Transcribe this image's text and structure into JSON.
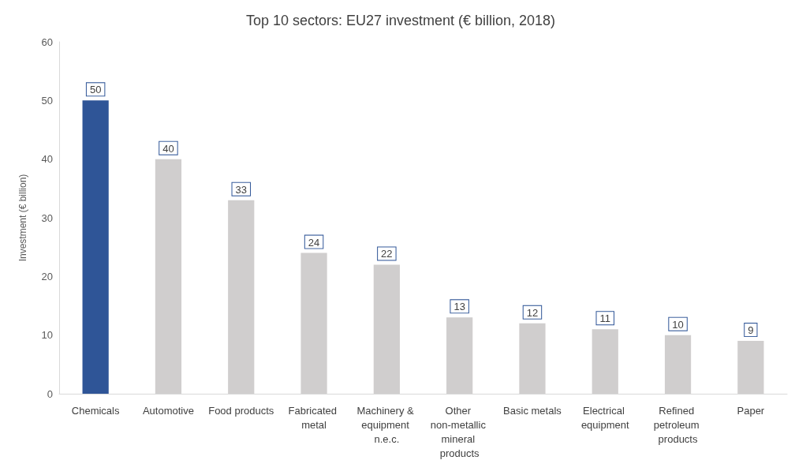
{
  "chart_data": {
    "type": "bar",
    "title": "Top 10 sectors: EU27 investment (€ billion, 2018)",
    "ylabel": "Investment (€ billion)",
    "categories": [
      "Chemicals",
      "Automotive",
      "Food products",
      "Fabricated metal",
      "Machinery & equipment n.e.c.",
      "Other non-metallic mineral products",
      "Basic metals",
      "Electrical equipment",
      "Refined petroleum products",
      "Paper"
    ],
    "values": [
      50,
      40,
      33,
      24,
      22,
      13,
      12,
      11,
      10,
      9
    ],
    "colors": [
      "#2f5597",
      "#d0cece",
      "#d0cece",
      "#d0cece",
      "#d0cece",
      "#d0cece",
      "#d0cece",
      "#d0cece",
      "#d0cece",
      "#d0cece"
    ],
    "ylim": [
      0,
      60
    ],
    "yticks": [
      0,
      10,
      20,
      30,
      40,
      50,
      60
    ],
    "grid": false,
    "data_labels": true
  }
}
